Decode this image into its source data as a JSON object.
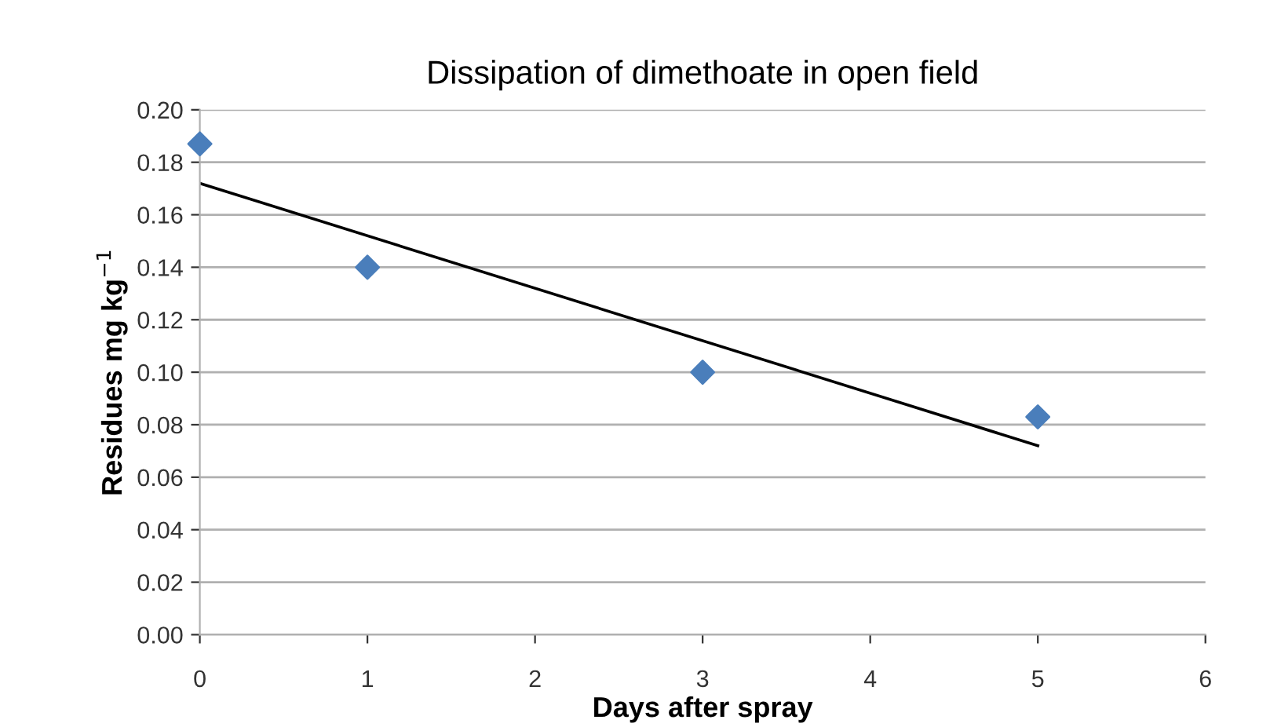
{
  "chart_data": {
    "type": "scatter",
    "title": "Dissipation of dimethoate in open field",
    "xlabel": "Days after spray",
    "ylabel": "Residues mg kg$^{−1}$",
    "series": [
      {
        "color": "#4a7ebb",
        "x": [
          0,
          1,
          3,
          5
        ],
        "values": [
          0.187,
          0.14,
          0.1,
          0.083
        ],
        "marker": "diamond"
      },
      {
        "type": "line",
        "color": "#000000",
        "x": [
          0,
          5
        ],
        "values": [
          0.172,
          0.072
        ],
        "marker": "none",
        "line_style": "solid"
      }
    ],
    "xlim": [
      0,
      6
    ],
    "xticks": [
      0,
      1,
      2,
      3,
      4,
      5,
      6
    ],
    "ylim": [
      0,
      0.2
    ],
    "yticks": [
      {
        "value": 0,
        "label": "0.00"
      },
      {
        "value": 0.02,
        "label": "0.02"
      },
      {
        "value": 0.04,
        "label": "0.04"
      },
      {
        "value": 0.06,
        "label": "0.06"
      },
      {
        "value": 0.08,
        "label": "0.08"
      },
      {
        "value": 0.1,
        "label": "0.10"
      },
      {
        "value": 0.12,
        "label": "0.12"
      },
      {
        "value": 0.14,
        "label": "0.14"
      },
      {
        "value": 0.16,
        "label": "0.16"
      },
      {
        "value": 0.18,
        "label": "0.18"
      },
      {
        "value": 0.2,
        "label": "0.20"
      }
    ],
    "grid": "y",
    "legend": false
  }
}
